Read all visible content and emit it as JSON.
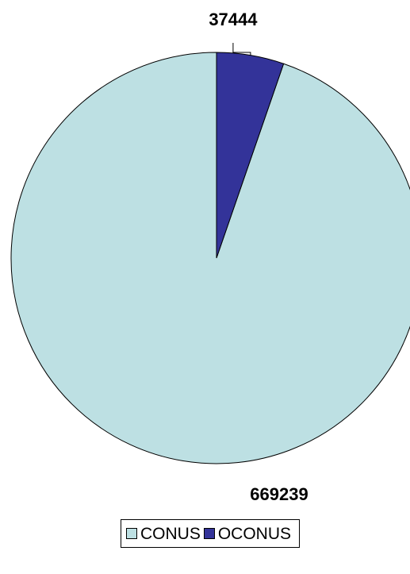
{
  "chart_data": {
    "type": "pie",
    "title": "",
    "slices": [
      {
        "name": "CONUS",
        "value": 669239,
        "label": "669239",
        "color": "#bde0e3"
      },
      {
        "name": "OCONUS",
        "value": 37444,
        "label": "37444",
        "color": "#333399"
      }
    ],
    "start_angle_deg": 0,
    "direction": "counterclockwise",
    "legend_placement": "bottom-center"
  },
  "legend": {
    "items": [
      {
        "label": "CONUS",
        "color": "#bde0e3"
      },
      {
        "label": "OCONUS",
        "color": "#333399"
      }
    ]
  }
}
